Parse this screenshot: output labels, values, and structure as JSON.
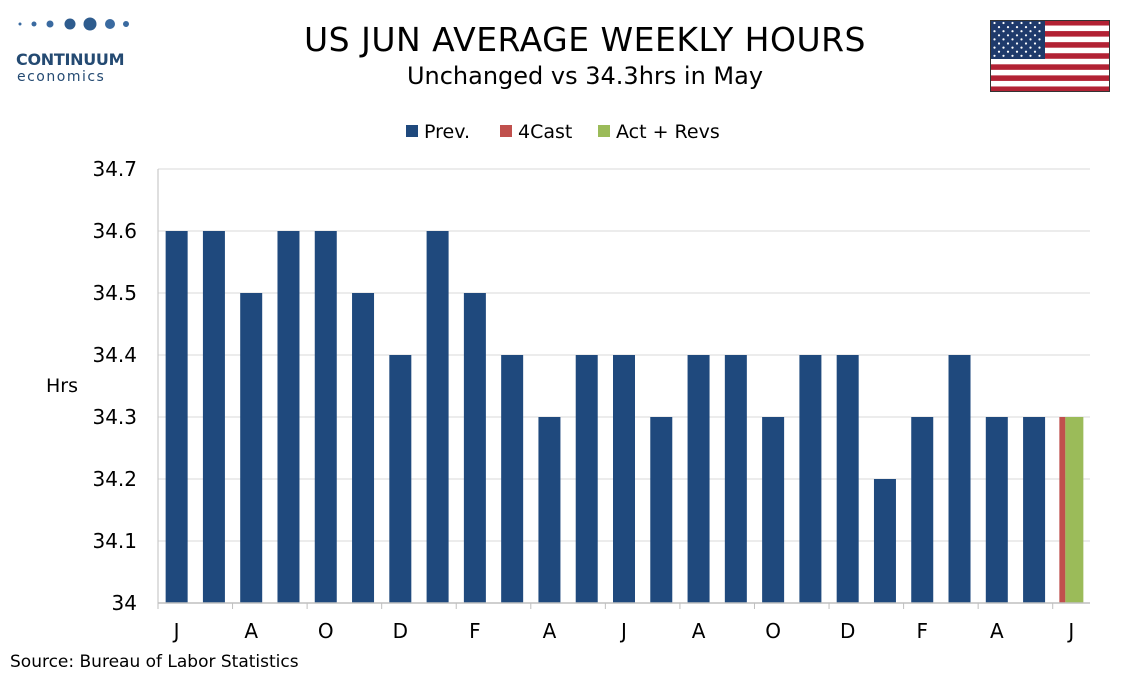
{
  "header": {
    "title": "US JUN AVERAGE WEEKLY HOURS",
    "subtitle": "Unchanged vs 34.3hrs in May"
  },
  "logo": {
    "line1": "CONTINUUM",
    "line2": "economics"
  },
  "source": "Source: Bureau of Labor Statistics",
  "colors": {
    "prev": "#1f497d",
    "forecast": "#c0504d",
    "actual": "#9bbb59",
    "grid": "#d9d9d9",
    "logo": "#244a72"
  },
  "flag_icon": "us-flag-icon",
  "chart_data": {
    "type": "bar",
    "ylabel": "Hrs",
    "ylim": [
      34.0,
      34.7
    ],
    "yticks": [
      "34",
      "34.1",
      "34.2",
      "34.3",
      "34.4",
      "34.5",
      "34.6",
      "34.7"
    ],
    "grid": true,
    "legend_position": "top",
    "legend": [
      {
        "name": "Prev.",
        "color": "#1f497d"
      },
      {
        "name": "4Cast",
        "color": "#c0504d"
      },
      {
        "name": "Act + Revs",
        "color": "#9bbb59"
      }
    ],
    "xtick_labels": [
      "J",
      "A",
      "O",
      "D",
      "F",
      "A",
      "J",
      "A",
      "O",
      "D",
      "F",
      "A",
      "J"
    ],
    "series": [
      {
        "name": "Prev.",
        "values": [
          34.6,
          34.6,
          34.5,
          34.6,
          34.6,
          34.5,
          34.4,
          34.6,
          34.5,
          34.4,
          34.3,
          34.4,
          34.4,
          34.3,
          34.4,
          34.4,
          34.3,
          34.4,
          34.4,
          34.2,
          34.3,
          34.4,
          34.3,
          34.3,
          null
        ]
      },
      {
        "name": "4Cast",
        "values": [
          null,
          null,
          null,
          null,
          null,
          null,
          null,
          null,
          null,
          null,
          null,
          null,
          null,
          null,
          null,
          null,
          null,
          null,
          null,
          null,
          null,
          null,
          null,
          null,
          34.3
        ]
      },
      {
        "name": "Act + Revs",
        "values": [
          null,
          null,
          null,
          null,
          null,
          null,
          null,
          null,
          null,
          null,
          null,
          null,
          null,
          null,
          null,
          null,
          null,
          null,
          null,
          null,
          null,
          null,
          null,
          null,
          34.3
        ]
      }
    ]
  }
}
